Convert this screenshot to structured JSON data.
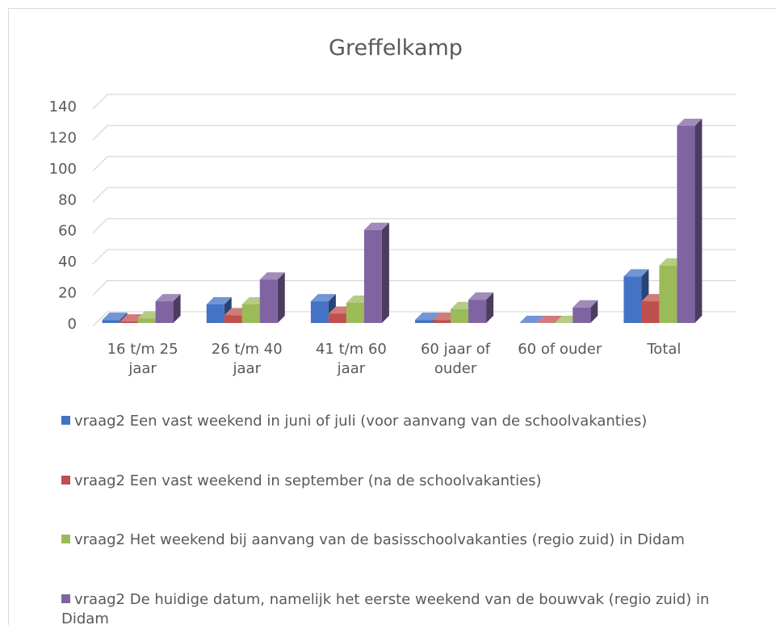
{
  "chart_data": {
    "type": "bar3d",
    "title": "Greffelkamp",
    "categories": [
      "16 t/m 25 jaar",
      "26 t/m 40 jaar",
      "41 t/m 60 jaar",
      "60 jaar of ouder",
      "60 of ouder",
      "Total"
    ],
    "series": [
      {
        "name": "vraag2 Een vast weekend in juni of juli (voor aanvang van de schoolvakanties)",
        "color": "#4472c4",
        "values": [
          2,
          12,
          14,
          2,
          0,
          30
        ]
      },
      {
        "name": "vraag2 Een vast weekend in september (na de schoolvakanties)",
        "color": "#c0504d",
        "values": [
          1,
          5,
          6,
          2,
          0,
          14
        ]
      },
      {
        "name": "vraag2 Het weekend bij aanvang van de basisschoolvakanties (regio zuid) in Didam",
        "color": "#9bbb59",
        "values": [
          3,
          12,
          13,
          9,
          0,
          37
        ]
      },
      {
        "name": "vraag2 De huidige datum, namelijk het eerste weekend van de bouwvak (regio zuid) in Didam",
        "color": "#8064a2",
        "values": [
          14,
          28,
          60,
          15,
          10,
          127
        ]
      }
    ],
    "ylim": [
      0,
      140
    ],
    "yticks": [
      0,
      20,
      40,
      60,
      80,
      100,
      120,
      140
    ],
    "grid": true,
    "legend": "bottom"
  }
}
